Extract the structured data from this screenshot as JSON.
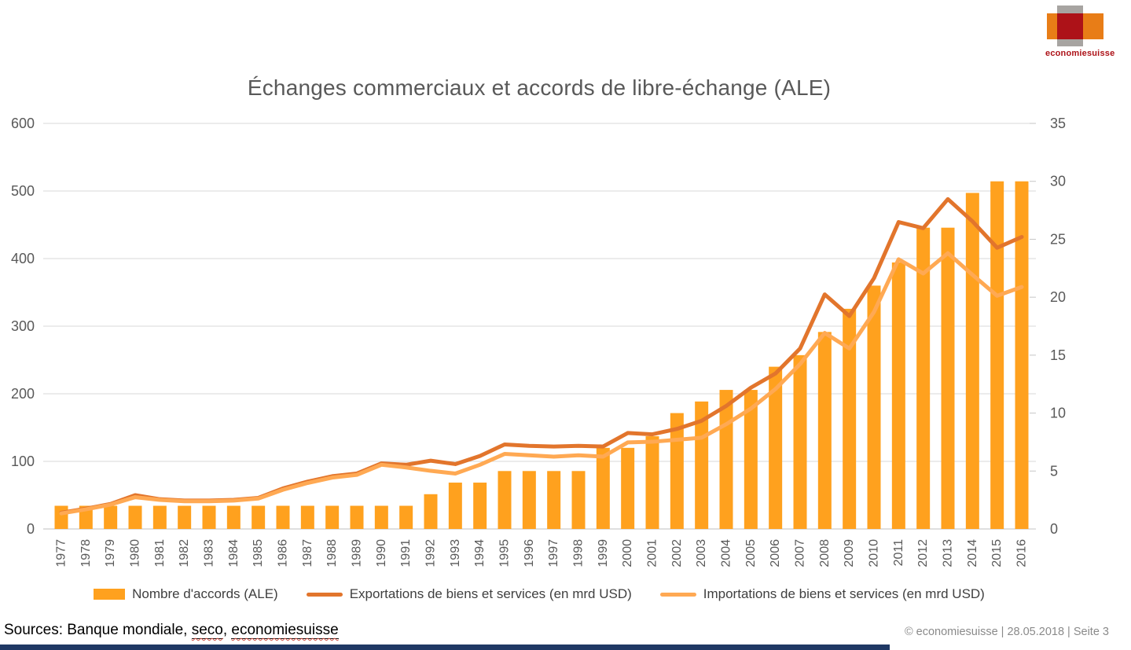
{
  "title": "Échanges commerciaux et accords de libre-échange (ALE)",
  "logo": {
    "wordmark": "economiesuisse"
  },
  "legend": [
    {
      "label": "Nombre d'accords (ALE)",
      "type": "bar",
      "color": "#ffa11e"
    },
    {
      "label": "Exportations de biens et services (en mrd USD)",
      "type": "line",
      "color": "#e2752c"
    },
    {
      "label": "Importations de biens et services (en mrd USD)",
      "type": "line",
      "color": "#ffa953"
    }
  ],
  "sources": {
    "parts": [
      {
        "text": "Sources: Banque mondiale, ",
        "link": false
      },
      {
        "text": "seco",
        "link": true
      },
      {
        "text": ", ",
        "link": false
      },
      {
        "text": "economiesuisse",
        "link": true
      }
    ]
  },
  "footer": "© economiesuisse | 28.05.2018 | Seite 3",
  "chart_data": {
    "type": "bar+line (dual axis)",
    "title": "Échanges commerciaux et accords de libre-échange (ALE)",
    "categories": [
      1977,
      1978,
      1979,
      1980,
      1981,
      1982,
      1983,
      1984,
      1985,
      1986,
      1987,
      1988,
      1989,
      1990,
      1991,
      1992,
      1993,
      1994,
      1995,
      1996,
      1997,
      1998,
      1999,
      2000,
      2001,
      2002,
      2003,
      2004,
      2005,
      2006,
      2007,
      2008,
      2009,
      2010,
      2011,
      2012,
      2013,
      2014,
      2015,
      2016
    ],
    "bar_series": {
      "name": "Nombre d'accords (ALE)",
      "axis": "right",
      "color": "#ffa11e",
      "values": [
        2,
        2,
        2,
        2,
        2,
        2,
        2,
        2,
        2,
        2,
        2,
        2,
        2,
        2,
        2,
        3,
        4,
        4,
        5,
        5,
        5,
        5,
        7,
        7,
        8,
        10,
        11,
        12,
        12,
        14,
        15,
        17,
        19,
        21,
        23,
        26,
        26,
        29,
        30,
        30
      ]
    },
    "line_series": [
      {
        "name": "Exportations de biens et services (en mrd USD)",
        "axis": "left",
        "color": "#e2752c",
        "values": [
          24,
          30,
          37,
          50,
          44,
          42,
          42,
          43,
          46,
          60,
          70,
          78,
          82,
          97,
          95,
          101,
          96,
          108,
          125,
          123,
          122,
          123,
          122,
          142,
          140,
          148,
          160,
          182,
          209,
          230,
          267,
          347,
          315,
          371,
          454,
          445,
          488,
          455,
          416,
          432
        ]
      },
      {
        "name": "Importations de biens et services (en mrd USD)",
        "axis": "left",
        "color": "#ffa953",
        "values": [
          23,
          29,
          36,
          47,
          43,
          41,
          41,
          42,
          45,
          58,
          68,
          76,
          80,
          95,
          91,
          86,
          82,
          95,
          111,
          109,
          107,
          109,
          107,
          128,
          129,
          132,
          135,
          155,
          178,
          207,
          244,
          290,
          267,
          321,
          399,
          378,
          408,
          376,
          345,
          358
        ]
      }
    ],
    "left_axis": {
      "min": 0,
      "max": 600,
      "step": 100,
      "ticks": [
        0,
        100,
        200,
        300,
        400,
        500,
        600
      ]
    },
    "right_axis": {
      "min": 0,
      "max": 35,
      "step": 5,
      "ticks": [
        0,
        5,
        10,
        15,
        20,
        25,
        30,
        35
      ]
    },
    "grid": "horizontal",
    "legend_position": "bottom",
    "axis_text_color": "#595959",
    "grid_color": "#d9d9d9"
  }
}
